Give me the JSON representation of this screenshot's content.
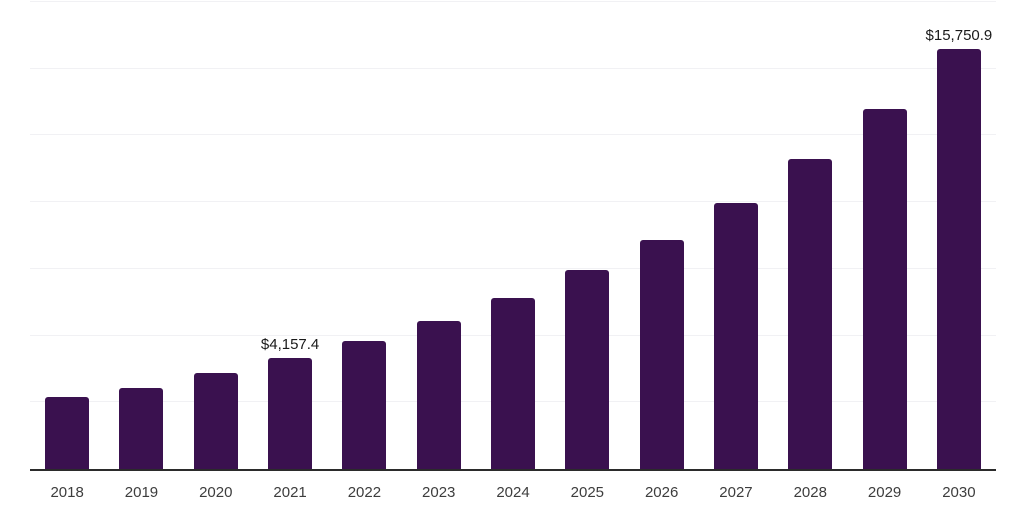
{
  "chart_data": {
    "type": "bar",
    "title": "",
    "xlabel": "",
    "ylabel": "",
    "categories": [
      "2018",
      "2019",
      "2020",
      "2021",
      "2022",
      "2023",
      "2024",
      "2025",
      "2026",
      "2027",
      "2028",
      "2029",
      "2030"
    ],
    "values": [
      2700,
      3040,
      3610,
      4157.4,
      4800,
      5530,
      6400,
      7450,
      8590,
      9980,
      11600,
      13490,
      15750.9
    ],
    "data_labels": [
      "",
      "",
      "",
      "$4,157.4",
      "",
      "",
      "",
      "",
      "",
      "",
      "",
      "",
      "$15,750.9"
    ],
    "ylim": [
      0,
      17500
    ],
    "grid_step": 2500,
    "grid": "horizontal",
    "legend": "none",
    "colors": {
      "bar": "#3A114F",
      "axis_line": "#2b2b2b",
      "gridline": "#f1f1f4",
      "data_label_text": "#1a1a1a",
      "tick_text": "#3d3d3d",
      "background": "#ffffff"
    }
  }
}
